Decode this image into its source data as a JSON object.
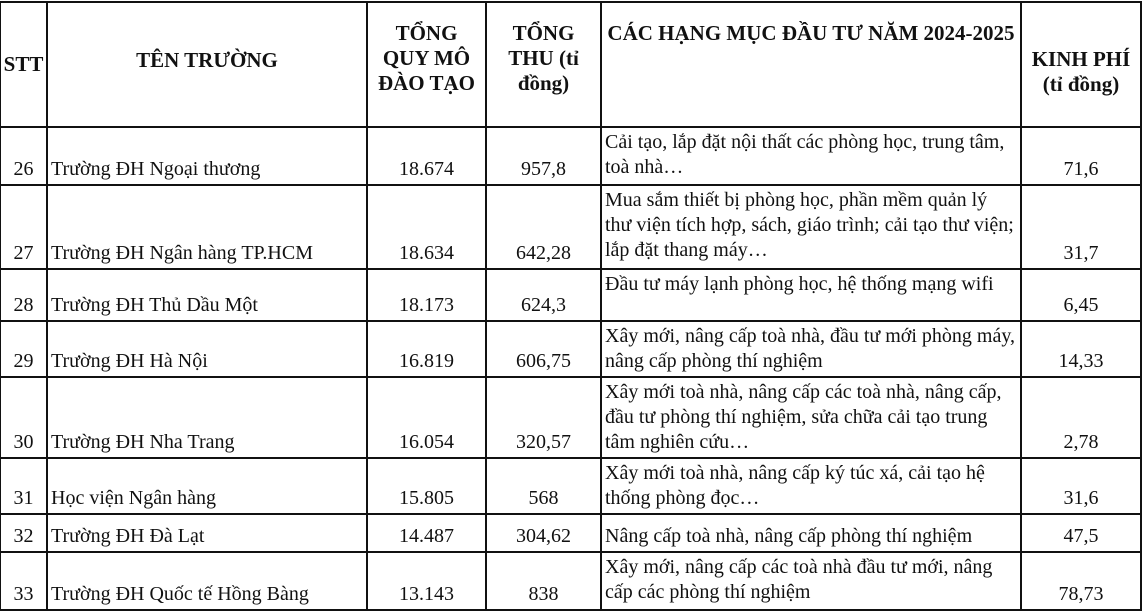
{
  "headers": {
    "stt": "STT",
    "name": "TÊN TRƯỜNG",
    "scale": "TỔNG QUY MÔ ĐÀO TẠO",
    "revenue": "TỔNG THU (tỉ đồng)",
    "items": "CÁC HẠNG MỤC ĐẦU TƯ NĂM 2024-2025",
    "cost": "KINH PHÍ (tỉ đồng)"
  },
  "rows": [
    {
      "stt": "26",
      "name": "Trường ĐH Ngoại thương",
      "scale": "18.674",
      "revenue": "957,8",
      "items": "Cải tạo, lắp đặt nội thất các phòng học, trung tâm, toà nhà…",
      "cost": "71,6"
    },
    {
      "stt": "27",
      "name": "Trường ĐH Ngân hàng TP.HCM",
      "scale": "18.634",
      "revenue": "642,28",
      "items": "Mua sắm thiết bị phòng học, phần mềm quản lý thư viện tích hợp, sách, giáo trình; cải tạo thư viện; lắp đặt thang máy…",
      "cost": "31,7"
    },
    {
      "stt": "28",
      "name": "Trường ĐH Thủ Dầu Một",
      "scale": "18.173",
      "revenue": "624,3",
      "items": "Đầu tư máy lạnh phòng học, hệ thống mạng wifi",
      "cost": "6,45"
    },
    {
      "stt": "29",
      "name": "Trường ĐH Hà Nội",
      "scale": "16.819",
      "revenue": "606,75",
      "items": "Xây mới, nâng cấp toà nhà, đầu tư mới phòng máy, nâng cấp phòng thí nghiệm",
      "cost": "14,33"
    },
    {
      "stt": "30",
      "name": "Trường ĐH Nha Trang",
      "scale": "16.054",
      "revenue": "320,57",
      "items": "Xây mới toà nhà, nâng cấp các toà nhà, nâng cấp, đầu tư phòng thí nghiệm, sửa chữa cải tạo trung tâm nghiên cứu…",
      "cost": "2,78"
    },
    {
      "stt": "31",
      "name": "Học viện Ngân hàng",
      "scale": "15.805",
      "revenue": "568",
      "items": "Xây mới toà nhà, nâng cấp ký túc xá, cải tạo hệ thống phòng đọc…",
      "cost": "31,6"
    },
    {
      "stt": "32",
      "name": "Trường ĐH Đà Lạt",
      "scale": "14.487",
      "revenue": "304,62",
      "items": "Nâng cấp toà nhà, nâng cấp phòng thí nghiệm",
      "cost": "47,5"
    },
    {
      "stt": "33",
      "name": "Trường ĐH Quốc tế Hồng Bàng",
      "scale": "13.143",
      "revenue": "838",
      "items": "Xây mới, nâng cấp các toà nhà đầu tư mới, nâng cấp các phòng thí nghiệm",
      "cost": "78,73"
    }
  ]
}
